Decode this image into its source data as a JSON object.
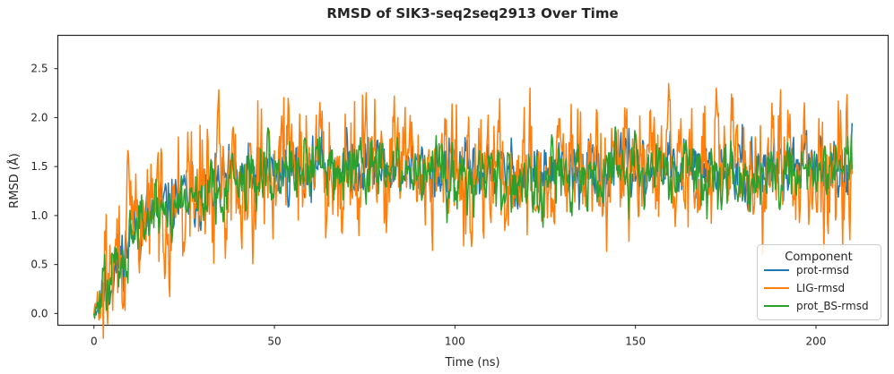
{
  "chart_data": {
    "type": "line",
    "title": "RMSD of SIK3-seq2seq2913 Over Time",
    "xlabel": "Time (ns)",
    "ylabel": "RMSD (Å)",
    "xlim": [
      -10,
      220
    ],
    "ylim": [
      -0.12,
      2.84
    ],
    "xticks": [
      0,
      50,
      100,
      150,
      200
    ],
    "yticks": [
      0.0,
      0.5,
      1.0,
      1.5,
      2.0,
      2.5
    ],
    "xtick_labels": [
      "0",
      "50",
      "100",
      "150",
      "200"
    ],
    "ytick_labels": [
      "0.0",
      "0.5",
      "1.0",
      "1.5",
      "2.0",
      "2.5"
    ],
    "legend": {
      "title": "Component",
      "placement": "lower-right"
    },
    "x_range": [
      0,
      210
    ],
    "n_points": 1051,
    "series": [
      {
        "name": "prot-rmsd",
        "color": "#1f77b4",
        "base": [
          0,
          0.9,
          1.15,
          1.3,
          1.42,
          1.5,
          1.52,
          1.48,
          1.45,
          1.45,
          1.42,
          1.42,
          1.45,
          1.48,
          1.48,
          1.45,
          1.48,
          1.5,
          1.55
        ],
        "noise": 0.14,
        "seed": 11
      },
      {
        "name": "LIG-rmsd",
        "color": "#ff7f0e",
        "base": [
          0,
          0.95,
          1.15,
          1.35,
          1.5,
          1.6,
          1.55,
          1.48,
          1.45,
          1.45,
          1.4,
          1.4,
          1.45,
          1.48,
          1.5,
          1.45,
          1.5,
          1.55,
          1.55
        ],
        "noise": 0.3,
        "seed": 29
      },
      {
        "name": "prot_BS-rmsd",
        "color": "#2ca02c",
        "base": [
          0,
          0.9,
          1.15,
          1.3,
          1.42,
          1.55,
          1.52,
          1.45,
          1.4,
          1.42,
          1.38,
          1.4,
          1.42,
          1.45,
          1.45,
          1.42,
          1.45,
          1.48,
          1.52
        ],
        "noise": 0.15,
        "seed": 47
      }
    ]
  }
}
